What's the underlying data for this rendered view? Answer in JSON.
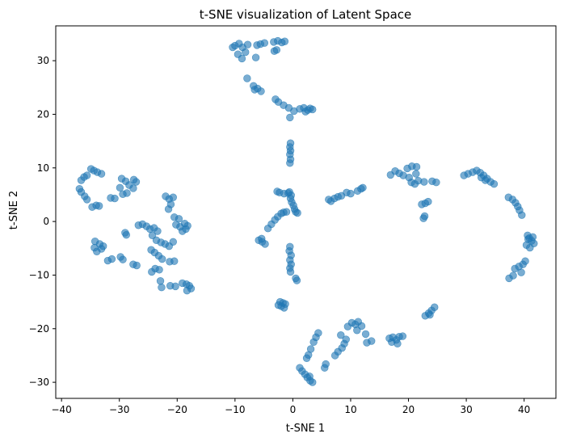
{
  "chart_data": {
    "type": "scatter",
    "title": "t-SNE visualization of Latent Space",
    "xlabel": "t-SNE 1",
    "ylabel": "t-SNE 2",
    "xlim": [
      -41,
      45.5
    ],
    "ylim": [
      -33,
      36.5
    ],
    "xticks": [
      -40,
      -30,
      -20,
      -10,
      0,
      10,
      20,
      30,
      40
    ],
    "yticks": [
      -30,
      -20,
      -10,
      0,
      10,
      20,
      30
    ],
    "grid": false,
    "marker_color": "#1f77b4",
    "marker_alpha": 0.6,
    "series": [
      {
        "values": [
          [
            -10,
            32.8
          ],
          [
            -9.3,
            33.2
          ],
          [
            -8.7,
            32.5
          ],
          [
            -8.2,
            31.6
          ],
          [
            -8.8,
            30.4
          ],
          [
            -9.5,
            31.2
          ],
          [
            -10.4,
            32.5
          ],
          [
            -7.8,
            33.0
          ],
          [
            -6.2,
            32.9
          ],
          [
            -5.6,
            33.1
          ],
          [
            -4.9,
            33.3
          ],
          [
            -6.4,
            30.6
          ],
          [
            -3.3,
            33.5
          ],
          [
            -2.6,
            33.7
          ],
          [
            -1.9,
            33.4
          ],
          [
            -1.4,
            33.6
          ],
          [
            -2.8,
            32.0
          ],
          [
            -3.2,
            31.8
          ],
          [
            -7.9,
            26.7
          ],
          [
            -6.8,
            25.3
          ],
          [
            -6.1,
            24.8
          ],
          [
            -5.5,
            24.3
          ],
          [
            -6.6,
            24.6
          ],
          [
            -3.0,
            22.8
          ],
          [
            -2.5,
            22.3
          ],
          [
            -1.6,
            21.7
          ],
          [
            -0.7,
            21.2
          ],
          [
            0.2,
            20.6
          ],
          [
            -0.5,
            19.4
          ],
          [
            1.2,
            21.0
          ],
          [
            1.9,
            21.2
          ],
          [
            2.6,
            20.8
          ],
          [
            3.0,
            21.1
          ],
          [
            3.4,
            20.9
          ],
          [
            2.2,
            20.5
          ],
          [
            -0.4,
            14.6
          ],
          [
            -0.5,
            13.9
          ],
          [
            -0.4,
            13.2
          ],
          [
            -0.5,
            12.5
          ],
          [
            -0.4,
            11.6
          ],
          [
            -0.5,
            10.9
          ],
          [
            -0.6,
            5.5
          ],
          [
            -0.3,
            4.9
          ],
          [
            -0.4,
            4.3
          ],
          [
            -0.2,
            3.6
          ],
          [
            0.1,
            3.0
          ],
          [
            0.3,
            2.3
          ],
          [
            0.5,
            1.8
          ],
          [
            0.8,
            1.6
          ],
          [
            -2.7,
            5.6
          ],
          [
            -2.3,
            5.4
          ],
          [
            -1.5,
            5.2
          ],
          [
            -0.8,
            5.3
          ],
          [
            -1.1,
            1.8
          ],
          [
            -1.6,
            1.7
          ],
          [
            -2.0,
            1.5
          ],
          [
            -2.6,
            0.9
          ],
          [
            -3.1,
            0.3
          ],
          [
            -3.7,
            -0.5
          ],
          [
            -4.3,
            -1.3
          ],
          [
            -5.4,
            -3.2
          ],
          [
            -5.9,
            -3.5
          ],
          [
            -5.3,
            -3.8
          ],
          [
            -4.8,
            -4.2
          ],
          [
            -0.5,
            -4.7
          ],
          [
            -0.6,
            -5.5
          ],
          [
            -0.3,
            -6.3
          ],
          [
            -0.5,
            -7.2
          ],
          [
            -0.3,
            -8.0
          ],
          [
            -0.5,
            -8.7
          ],
          [
            -0.4,
            -9.4
          ],
          [
            0.5,
            -10.6
          ],
          [
            0.7,
            -11.0
          ],
          [
            -2.2,
            -15.0
          ],
          [
            -1.7,
            -15.2
          ],
          [
            -1.3,
            -15.4
          ],
          [
            -2.0,
            -15.8
          ],
          [
            -1.5,
            -16.1
          ],
          [
            -2.5,
            -15.6
          ],
          [
            -36.6,
            7.7
          ],
          [
            -36.1,
            8.3
          ],
          [
            -35.6,
            8.6
          ],
          [
            -34.9,
            9.8
          ],
          [
            -34.4,
            9.5
          ],
          [
            -33.8,
            9.2
          ],
          [
            -33.1,
            8.9
          ],
          [
            -36.9,
            6.1
          ],
          [
            -36.6,
            5.5
          ],
          [
            -36.0,
            4.7
          ],
          [
            -35.6,
            4.1
          ],
          [
            -34.7,
            2.7
          ],
          [
            -34.0,
            3.0
          ],
          [
            -33.5,
            2.9
          ],
          [
            -31.5,
            4.4
          ],
          [
            -30.8,
            4.3
          ],
          [
            -29.6,
            8.0
          ],
          [
            -28.9,
            7.5
          ],
          [
            -28.3,
            6.8
          ],
          [
            -27.6,
            6.2
          ],
          [
            -27.1,
            7.4
          ],
          [
            -28.7,
            5.3
          ],
          [
            -29.4,
            5.1
          ],
          [
            -29.9,
            6.3
          ],
          [
            -27.5,
            7.8
          ],
          [
            -34.2,
            -3.7
          ],
          [
            -33.4,
            -4.2
          ],
          [
            -32.8,
            -4.6
          ],
          [
            -33.9,
            -5.6
          ],
          [
            -33.1,
            -5.1
          ],
          [
            -34.3,
            -4.9
          ],
          [
            -32.0,
            -7.3
          ],
          [
            -31.3,
            -7.0
          ],
          [
            -29.8,
            -6.6
          ],
          [
            -29.4,
            -7.1
          ],
          [
            -29.0,
            -2.1
          ],
          [
            -28.8,
            -2.5
          ],
          [
            -27.6,
            -8.0
          ],
          [
            -27.0,
            -8.2
          ],
          [
            -26.7,
            -0.7
          ],
          [
            -26.0,
            -0.5
          ],
          [
            -25.3,
            -0.9
          ],
          [
            -24.7,
            -1.4
          ],
          [
            -24.0,
            -1.2
          ],
          [
            -23.4,
            -1.8
          ],
          [
            -24.3,
            -2.6
          ],
          [
            -23.6,
            -3.5
          ],
          [
            -22.8,
            -3.9
          ],
          [
            -22.1,
            -4.2
          ],
          [
            -21.4,
            -4.6
          ],
          [
            -20.7,
            -3.8
          ],
          [
            -24.5,
            -5.3
          ],
          [
            -23.9,
            -5.8
          ],
          [
            -23.2,
            -6.4
          ],
          [
            -22.6,
            -7.0
          ],
          [
            -23.8,
            -8.8
          ],
          [
            -24.4,
            -9.4
          ],
          [
            -23.1,
            -9.0
          ],
          [
            -21.3,
            -7.5
          ],
          [
            -20.5,
            -7.4
          ],
          [
            -22.9,
            -11.1
          ],
          [
            -22.7,
            -12.3
          ],
          [
            -21.2,
            -12.0
          ],
          [
            -20.3,
            -12.1
          ],
          [
            -22.0,
            4.7
          ],
          [
            -21.4,
            4.2
          ],
          [
            -20.7,
            4.5
          ],
          [
            -21.1,
            3.2
          ],
          [
            -21.5,
            2.3
          ],
          [
            -20.5,
            0.8
          ],
          [
            -19.7,
            0.5
          ],
          [
            -20.2,
            -0.6
          ],
          [
            -19.5,
            -1.0
          ],
          [
            -18.7,
            -0.4
          ],
          [
            -18.2,
            -0.8
          ],
          [
            -19.1,
            -1.8
          ],
          [
            -18.5,
            -1.4
          ],
          [
            -19.1,
            -11.5
          ],
          [
            -18.4,
            -11.7
          ],
          [
            -17.9,
            -12.0
          ],
          [
            -17.6,
            -12.5
          ],
          [
            -18.3,
            -12.9
          ],
          [
            4.4,
            -20.8
          ],
          [
            4.0,
            -21.6
          ],
          [
            3.6,
            -22.5
          ],
          [
            3.1,
            -23.8
          ],
          [
            2.7,
            -24.9
          ],
          [
            2.4,
            -25.5
          ],
          [
            1.2,
            -27.3
          ],
          [
            1.6,
            -27.9
          ],
          [
            2.1,
            -28.5
          ],
          [
            2.5,
            -29.1
          ],
          [
            3.0,
            -29.7
          ],
          [
            3.4,
            -30.0
          ],
          [
            2.9,
            -28.9
          ],
          [
            5.7,
            -26.6
          ],
          [
            5.5,
            -27.3
          ],
          [
            7.3,
            -25.0
          ],
          [
            7.8,
            -24.3
          ],
          [
            8.5,
            -23.6
          ],
          [
            8.9,
            -22.8
          ],
          [
            9.2,
            -22.0
          ],
          [
            8.3,
            -21.2
          ],
          [
            9.5,
            -19.6
          ],
          [
            10.2,
            -18.9
          ],
          [
            10.8,
            -19.2
          ],
          [
            11.3,
            -18.7
          ],
          [
            11.9,
            -19.5
          ],
          [
            11.1,
            -20.3
          ],
          [
            12.6,
            -21.0
          ],
          [
            12.8,
            -22.6
          ],
          [
            13.6,
            -22.3
          ],
          [
            16.7,
            -21.8
          ],
          [
            17.3,
            -21.6
          ],
          [
            17.9,
            -22.1
          ],
          [
            18.4,
            -21.5
          ],
          [
            19.0,
            -21.4
          ],
          [
            17.1,
            -22.5
          ],
          [
            18.1,
            -22.8
          ],
          [
            22.9,
            -17.6
          ],
          [
            23.5,
            -17.1
          ],
          [
            24.0,
            -16.6
          ],
          [
            24.5,
            -16.0
          ],
          [
            23.7,
            -17.4
          ],
          [
            6.2,
            4.1
          ],
          [
            6.6,
            3.8
          ],
          [
            7.2,
            4.3
          ],
          [
            7.8,
            4.6
          ],
          [
            8.4,
            4.8
          ],
          [
            9.3,
            5.4
          ],
          [
            10.0,
            5.2
          ],
          [
            11.2,
            5.7
          ],
          [
            11.8,
            6.1
          ],
          [
            12.1,
            6.3
          ],
          [
            16.9,
            8.7
          ],
          [
            17.7,
            9.4
          ],
          [
            18.4,
            9.0
          ],
          [
            19.1,
            8.6
          ],
          [
            19.8,
            9.9
          ],
          [
            20.6,
            10.3
          ],
          [
            21.4,
            10.2
          ],
          [
            20.1,
            8.2
          ],
          [
            20.5,
            7.3
          ],
          [
            21.1,
            7.0
          ],
          [
            21.7,
            7.6
          ],
          [
            21.3,
            8.9
          ],
          [
            22.3,
            3.2
          ],
          [
            22.9,
            3.4
          ],
          [
            23.4,
            3.7
          ],
          [
            22.8,
            1.0
          ],
          [
            22.6,
            0.6
          ],
          [
            24.1,
            7.5
          ],
          [
            24.8,
            7.3
          ],
          [
            22.7,
            7.4
          ],
          [
            29.6,
            8.6
          ],
          [
            30.3,
            8.9
          ],
          [
            31.1,
            9.2
          ],
          [
            31.8,
            9.5
          ],
          [
            32.4,
            9.1
          ],
          [
            33.0,
            8.6
          ],
          [
            33.6,
            8.0
          ],
          [
            34.2,
            7.4
          ],
          [
            34.8,
            7.0
          ],
          [
            32.6,
            8.2
          ],
          [
            33.3,
            7.7
          ],
          [
            37.3,
            4.5
          ],
          [
            38.0,
            4.1
          ],
          [
            38.5,
            3.5
          ],
          [
            38.9,
            2.8
          ],
          [
            39.2,
            2.1
          ],
          [
            39.6,
            1.2
          ],
          [
            40.6,
            -2.6
          ],
          [
            40.9,
            -3.1
          ],
          [
            41.3,
            -3.6
          ],
          [
            41.7,
            -4.1
          ],
          [
            40.4,
            -4.4
          ],
          [
            41.0,
            -4.9
          ],
          [
            40.7,
            -3.3
          ],
          [
            41.5,
            -2.9
          ],
          [
            38.4,
            -8.8
          ],
          [
            39.1,
            -8.4
          ],
          [
            39.8,
            -8.0
          ],
          [
            40.2,
            -7.4
          ],
          [
            39.5,
            -9.5
          ],
          [
            38.1,
            -10.1
          ],
          [
            37.4,
            -10.6
          ]
        ]
      }
    ]
  }
}
